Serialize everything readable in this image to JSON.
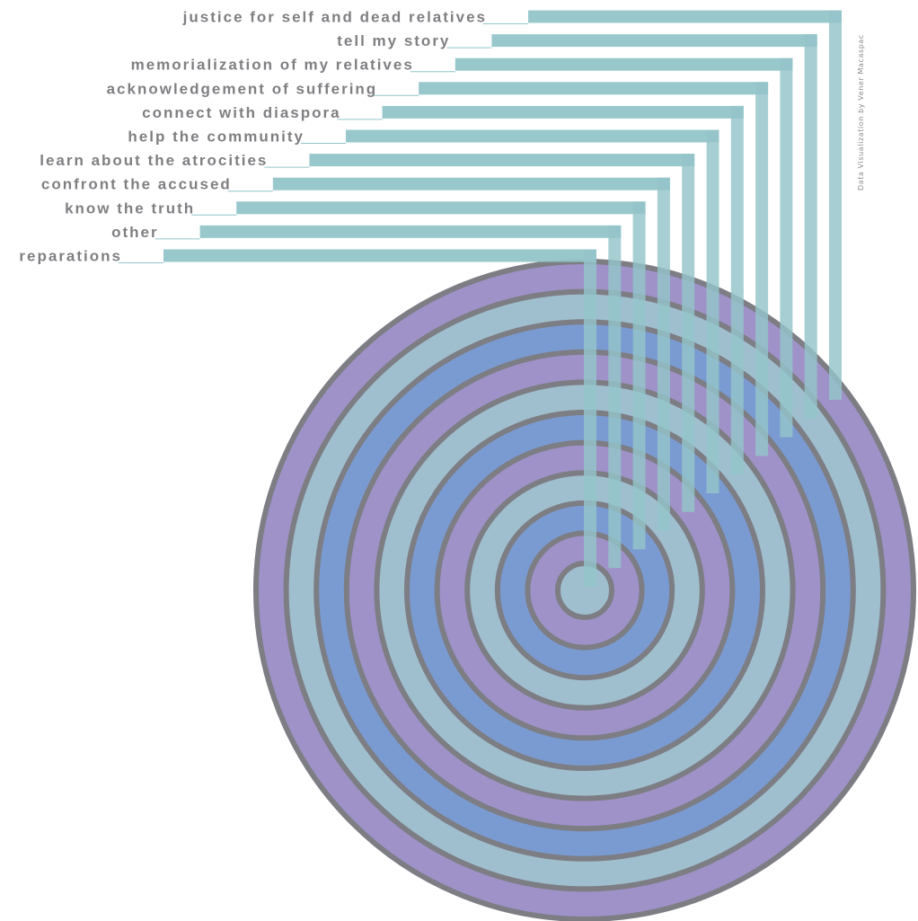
{
  "chart_data": {
    "type": "concentric_ring_bars",
    "categories": [
      "justice for self and dead relatives",
      "tell my story",
      "memorialization of my relatives",
      "acknowledgement of suffering",
      "connect with diaspora",
      "help the community",
      "learn about the atrocities",
      "confront the accused",
      "know the truth",
      "other",
      "reparations"
    ],
    "credit": "Data Visualization by Vener Macaspac",
    "rings": 11,
    "ring_colors": [
      "#9fbfcf",
      "#9f92c8",
      "#7a9bd2"
    ],
    "ring_stroke_color": "#7d7d84",
    "bar_color": "#94c5c9",
    "label_color": "#7f7f83"
  }
}
